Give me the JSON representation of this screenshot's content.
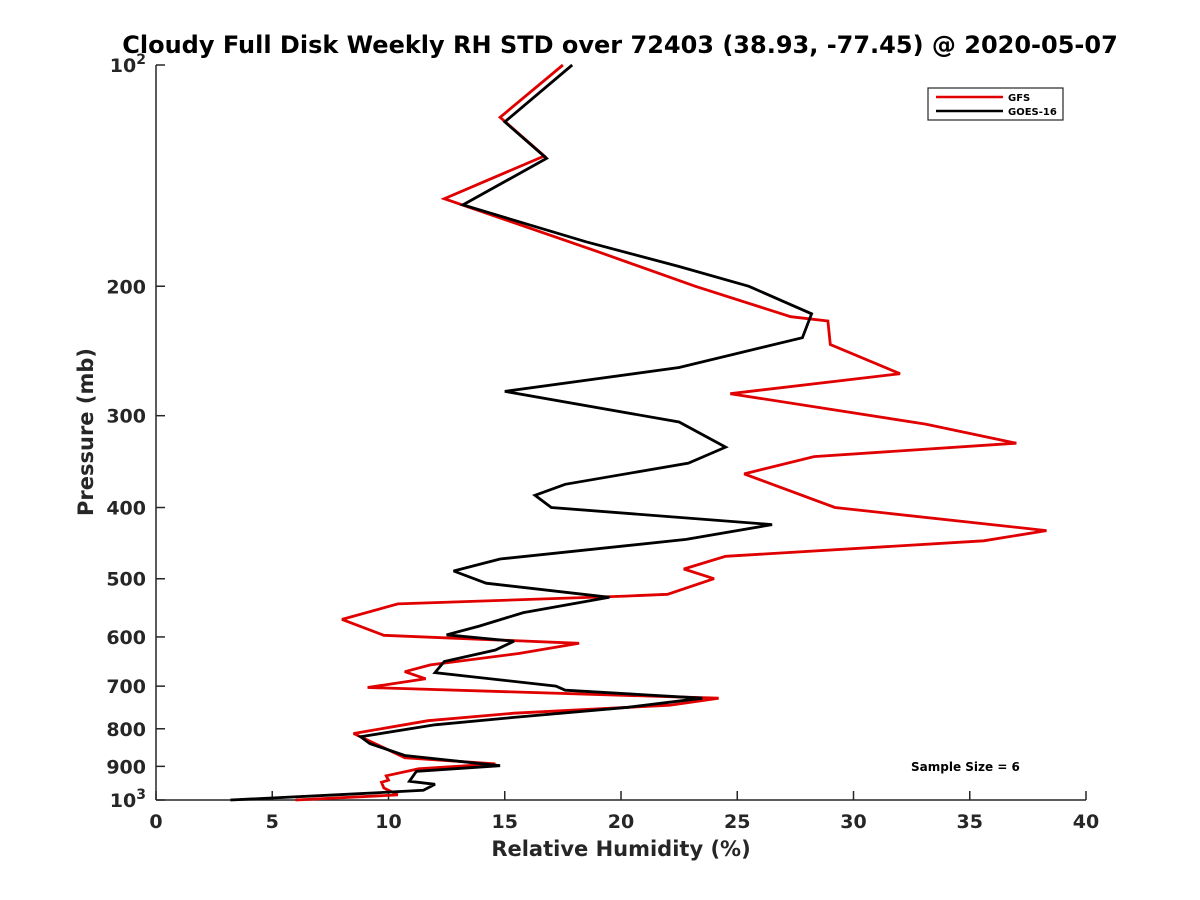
{
  "chart_data": {
    "type": "line",
    "title": "Cloudy Full Disk Weekly RH STD over 72403 (38.93, -77.45) @ 2020-05-07",
    "xlabel": "Relative Humidity (%)",
    "ylabel": "Pressure (mb)",
    "xlim": [
      0,
      40
    ],
    "ylim": [
      100,
      1000
    ],
    "y_scale": "log",
    "y_reversed": true,
    "x_ticks": [
      "0",
      "5",
      "10",
      "15",
      "20",
      "25",
      "30",
      "35",
      "40"
    ],
    "y_ticks": [
      {
        "value": 100,
        "label": "10",
        "sup": "2"
      },
      {
        "value": 200,
        "label": "200",
        "sup": ""
      },
      {
        "value": 300,
        "label": "300",
        "sup": ""
      },
      {
        "value": 400,
        "label": "400",
        "sup": ""
      },
      {
        "value": 500,
        "label": "500",
        "sup": ""
      },
      {
        "value": 600,
        "label": "600",
        "sup": ""
      },
      {
        "value": 700,
        "label": "700",
        "sup": ""
      },
      {
        "value": 800,
        "label": "800",
        "sup": ""
      },
      {
        "value": 900,
        "label": "900",
        "sup": ""
      },
      {
        "value": 1000,
        "label": "10",
        "sup": "3"
      }
    ],
    "grid": false,
    "legend_position": "top-right",
    "annotation": "Sample Size = 6",
    "series": [
      {
        "name": "GFS",
        "color": "#e00000",
        "points": [
          [
            17.5,
            100
          ],
          [
            14.8,
            117.8
          ],
          [
            16.7,
            133
          ],
          [
            12.4,
            152
          ],
          [
            18.9,
            179
          ],
          [
            23.2,
            200
          ],
          [
            27.3,
            220
          ],
          [
            28.9,
            223
          ],
          [
            29.0,
            240
          ],
          [
            32.0,
            263
          ],
          [
            24.7,
            280
          ],
          [
            33.1,
            308
          ],
          [
            37.0,
            327
          ],
          [
            28.3,
            341
          ],
          [
            25.3,
            360
          ],
          [
            29.2,
            400
          ],
          [
            38.3,
            430
          ],
          [
            35.6,
            444
          ],
          [
            24.5,
            466
          ],
          [
            22.7,
            485
          ],
          [
            24.0,
            500
          ],
          [
            22.0,
            525
          ],
          [
            20.2,
            528
          ],
          [
            10.4,
            541
          ],
          [
            8.0,
            568
          ],
          [
            9.8,
            597
          ],
          [
            18.2,
            612
          ],
          [
            15.6,
            632
          ],
          [
            11.8,
            655
          ],
          [
            10.7,
            669
          ],
          [
            11.6,
            684
          ],
          [
            9.1,
            703
          ],
          [
            24.2,
            727
          ],
          [
            22.1,
            743
          ],
          [
            15.4,
            762
          ],
          [
            11.7,
            780
          ],
          [
            8.5,
            812
          ],
          [
            10.7,
            876
          ],
          [
            14.6,
            893
          ],
          [
            11.3,
            907
          ],
          [
            9.9,
            927
          ],
          [
            10.0,
            940
          ],
          [
            9.7,
            946
          ],
          [
            9.8,
            963
          ],
          [
            10.4,
            984
          ],
          [
            6.0,
            1000
          ]
        ]
      },
      {
        "name": "GOES-16",
        "color": "#000000",
        "points": [
          [
            17.9,
            100
          ],
          [
            15.0,
            119.5
          ],
          [
            16.8,
            134
          ],
          [
            13.2,
            155
          ],
          [
            18.5,
            174
          ],
          [
            22.5,
            188
          ],
          [
            25.5,
            200
          ],
          [
            28.2,
            218
          ],
          [
            27.8,
            235
          ],
          [
            22.5,
            258
          ],
          [
            15.0,
            278
          ],
          [
            22.5,
            306
          ],
          [
            24.5,
            331
          ],
          [
            22.9,
            348
          ],
          [
            17.6,
            372
          ],
          [
            16.3,
            385
          ],
          [
            17.0,
            400
          ],
          [
            26.5,
            422
          ],
          [
            22.8,
            442
          ],
          [
            14.8,
            470
          ],
          [
            12.8,
            488
          ],
          [
            14.2,
            507
          ],
          [
            19.5,
            530
          ],
          [
            15.8,
            556
          ],
          [
            13.9,
            580
          ],
          [
            12.5,
            596
          ],
          [
            15.4,
            608
          ],
          [
            14.6,
            625
          ],
          [
            12.4,
            648
          ],
          [
            12.0,
            671
          ],
          [
            17.2,
            700
          ],
          [
            17.6,
            709
          ],
          [
            23.5,
            727
          ],
          [
            20.3,
            748
          ],
          [
            15.4,
            772
          ],
          [
            12.0,
            790
          ],
          [
            8.8,
            820
          ],
          [
            9.2,
            838
          ],
          [
            10.7,
            870
          ],
          [
            14.8,
            898
          ],
          [
            11.2,
            914
          ],
          [
            10.9,
            943
          ],
          [
            12.0,
            952
          ],
          [
            11.5,
            970
          ],
          [
            8.3,
            982
          ],
          [
            3.2,
            1000
          ]
        ]
      }
    ]
  }
}
